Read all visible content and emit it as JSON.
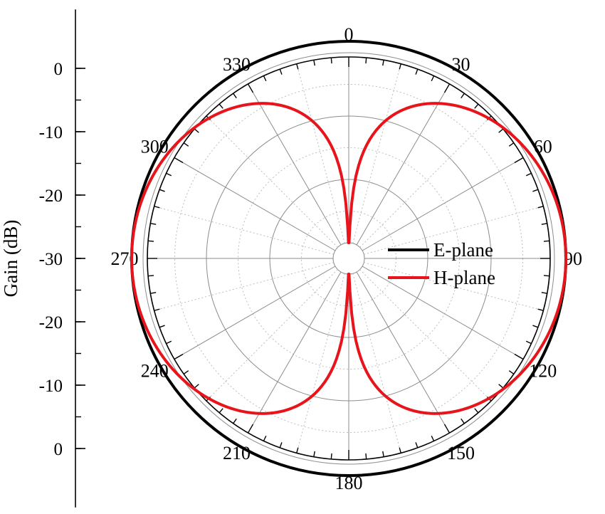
{
  "chart_data": {
    "type": "polar-line",
    "ylabel": "Gain (dB)",
    "angle_ticks": [
      "0",
      "30",
      "60",
      "90",
      "120",
      "150",
      "180",
      "210",
      "240",
      "270",
      "300",
      "330"
    ],
    "gain_axis": {
      "min": -30,
      "max": 3,
      "tick_labels_upper": [
        "0",
        "-10",
        "-20",
        "-30"
      ],
      "tick_labels_lower": [
        "-20",
        "-10",
        "0"
      ],
      "tick_values_upper": [
        0,
        -10,
        -20,
        -30
      ],
      "tick_values_lower": [
        -20,
        -10,
        0
      ],
      "grid_values": [
        -30,
        -25,
        -20,
        -15,
        -10,
        -5,
        0
      ]
    },
    "legend": {
      "placement": "center-right"
    },
    "series": [
      {
        "name": "E-plane",
        "color": "#000000",
        "pattern": "omnidirectional",
        "peak_gain_db": 1.8,
        "angles_deg": [
          0,
          30,
          60,
          90,
          120,
          150,
          180,
          210,
          240,
          270,
          300,
          330
        ],
        "gain_db": [
          1.8,
          1.8,
          1.8,
          1.8,
          1.8,
          1.8,
          1.8,
          1.8,
          1.8,
          1.8,
          1.8,
          1.8
        ]
      },
      {
        "name": "H-plane",
        "color": "#e8141b",
        "pattern": "figure-eight",
        "peak_gain_db": 1.8,
        "null_depth_db": -30,
        "angles_deg": [
          0,
          30,
          60,
          90,
          120,
          150,
          180,
          210,
          240,
          270,
          300,
          330
        ],
        "gain_db": [
          -30,
          -4.2,
          -0.6,
          1.8,
          -0.6,
          -4.2,
          -30,
          -4.2,
          -0.6,
          1.8,
          -0.6,
          -4.2
        ]
      }
    ]
  }
}
